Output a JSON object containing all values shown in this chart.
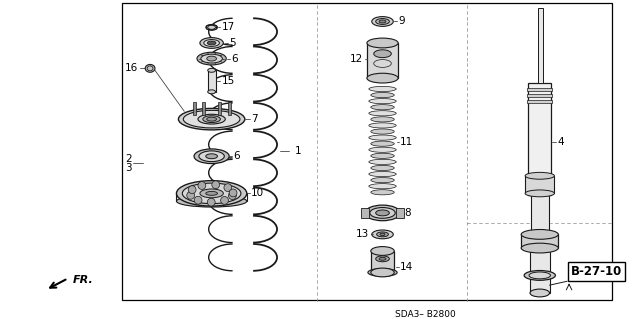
{
  "bg_color": "#ffffff",
  "border_color": "#000000",
  "line_color": "#1a1a1a",
  "ref_code": "B-27-10",
  "sub_code": "SDA3– B2800",
  "arrow_label": "FR."
}
